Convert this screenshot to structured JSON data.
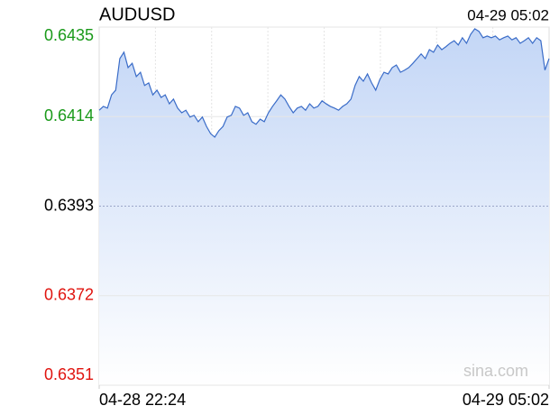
{
  "chart_data": {
    "type": "line",
    "title": "AUDUSD",
    "timestamp": "04-29 05:02",
    "watermark": "sina.com",
    "values": [
      0.64155,
      0.64164,
      0.6416,
      0.64191,
      0.64202,
      0.64276,
      0.64291,
      0.64255,
      0.64265,
      0.64234,
      0.64244,
      0.64213,
      0.64219,
      0.64191,
      0.64202,
      0.64185,
      0.64191,
      0.6417,
      0.64181,
      0.6416,
      0.64149,
      0.64155,
      0.64139,
      0.64143,
      0.64128,
      0.64139,
      0.64117,
      0.641,
      0.64092,
      0.64107,
      0.64117,
      0.64139,
      0.64143,
      0.64164,
      0.6416,
      0.64143,
      0.64149,
      0.64128,
      0.64122,
      0.64134,
      0.64128,
      0.64149,
      0.64164,
      0.64177,
      0.64191,
      0.64181,
      0.64164,
      0.64149,
      0.6416,
      0.64164,
      0.64155,
      0.6417,
      0.6416,
      0.64164,
      0.64177,
      0.6417,
      0.64164,
      0.6416,
      0.64155,
      0.64164,
      0.6417,
      0.64181,
      0.64213,
      0.64234,
      0.64223,
      0.6424,
      0.64219,
      0.64202,
      0.64227,
      0.64244,
      0.6424,
      0.64255,
      0.64261,
      0.64244,
      0.64249,
      0.64255,
      0.64265,
      0.64276,
      0.64287,
      0.64276,
      0.64297,
      0.64291,
      0.64308,
      0.64297,
      0.64304,
      0.64312,
      0.64318,
      0.64308,
      0.64325,
      0.64312,
      0.64333,
      0.64346,
      0.6434,
      0.64325,
      0.64329,
      0.64325,
      0.64329,
      0.6432,
      0.64325,
      0.64329,
      0.6432,
      0.64325,
      0.64312,
      0.64318,
      0.64325,
      0.64312,
      0.64325,
      0.64318,
      0.64249,
      0.64276
    ],
    "color": "#3a6cc8",
    "xlim": [
      0,
      109
    ],
    "xticks": [
      {
        "value": 0,
        "label": "04-28 22:24"
      },
      {
        "value": 109,
        "label": "04-29 05:02"
      }
    ],
    "ylim": [
      0.6351,
      0.6435
    ],
    "yticks": [
      0.6435,
      0.6414,
      0.6393,
      0.6372,
      0.6351
    ],
    "baseline": 0.6393,
    "up_color": "#1a9a1a",
    "down_color": "#e0140f",
    "flat_color": "#000000",
    "grid": true
  }
}
